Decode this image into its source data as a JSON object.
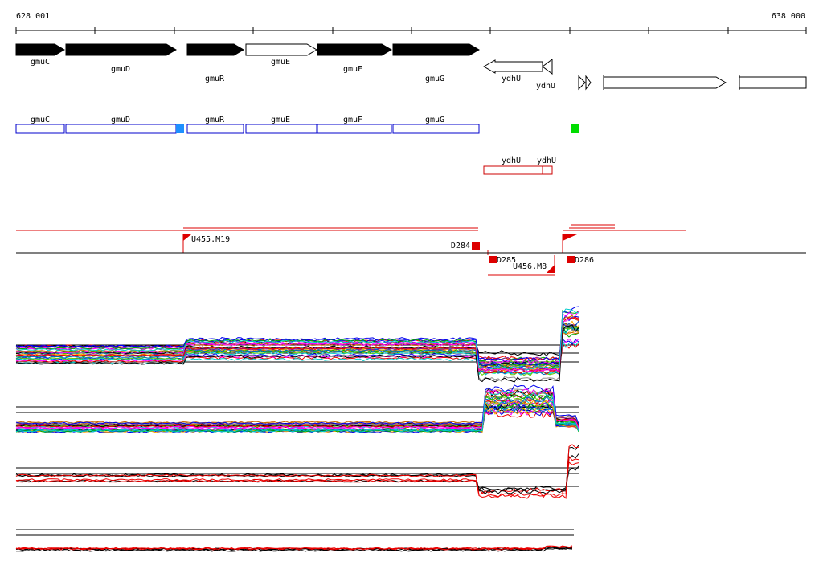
{
  "ruler": {
    "start": "628 001",
    "end": "638 000"
  },
  "genes": [
    "gmuC",
    "gmuD",
    "gmuR",
    "gmuE",
    "gmuF",
    "gmuG",
    "ydhU",
    "ydhU"
  ],
  "annotations": [
    "gmuC",
    "gmuD",
    "gmuR",
    "gmuE",
    "gmuF",
    "gmuG"
  ],
  "other_annotations": [
    "ydhU",
    "ydhU"
  ],
  "features": [
    "U455.M19",
    "D284",
    "D285",
    "U456.M8",
    "D286"
  ]
}
